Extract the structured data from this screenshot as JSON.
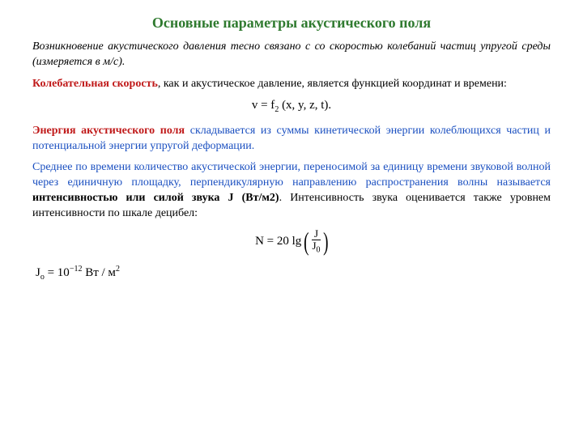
{
  "colors": {
    "title": "#2f7a2f",
    "text": "#000000",
    "blue": "#1a4fc0",
    "red": "#c01a1a",
    "background": "#ffffff"
  },
  "typography": {
    "title_fontsize": 18,
    "body_fontsize": 14,
    "formula_fontsize": 15,
    "font_family": "Times New Roman"
  },
  "title": "Основные параметры акустического поля",
  "intro_italic": "Возникновение акустического давления тесно связано с со скоростью колебаний частиц упругой среды (измеряется в м/с).",
  "p1": {
    "red_lead": "Колебательная скорость",
    "rest": ", как и акустическое давление, является функцией координат и времени:"
  },
  "formula1": "v = f",
  "formula1_sub": "2",
  "formula1_args": "(x, y, z, t).",
  "p2": {
    "red_lead": "Энергия акустического поля",
    "rest": " складывается из суммы кинетической энергии колеблющихся частиц и потенциальной энергии упругой деформации."
  },
  "p3": {
    "pre": "Среднее по времени количество акустической энергии, переносимой за единицу времени звуковой волной через единичную площадку, перпендикулярную направлению распространения волны называется ",
    "bold": "интенсивностью или силой звука J (Вт/м2)",
    "post": ". Интенсивность звука оценивается также уровнем интенсивности по шкале децибел:"
  },
  "formula2": {
    "lhs": "N = 20 lg",
    "num": "J",
    "den_main": "J",
    "den_sub": "0"
  },
  "formula3": {
    "lhs_main": "J",
    "lhs_sub": "о",
    "eq": " = 10",
    "exp": "−12",
    "rhs": "  Вт / м",
    "rhs_sup": "2"
  }
}
